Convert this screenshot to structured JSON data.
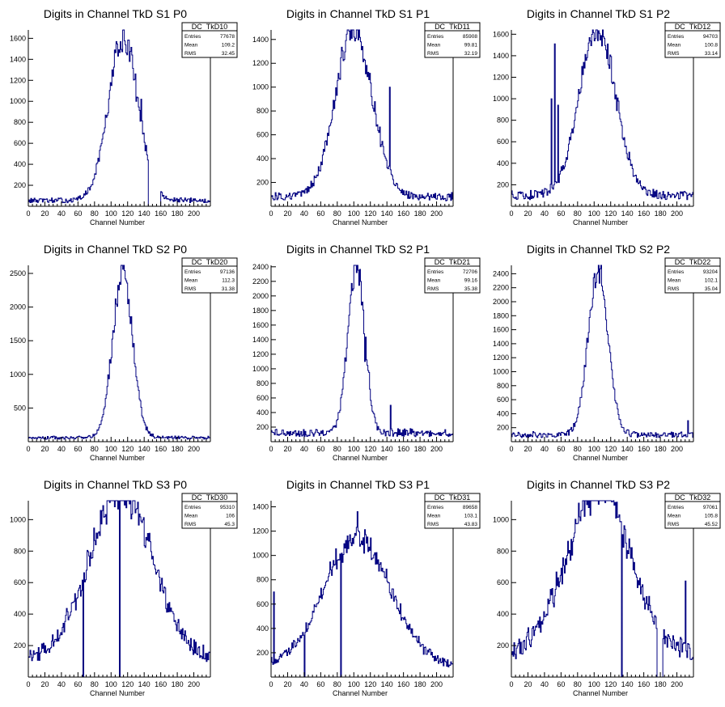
{
  "chart_data": [
    {
      "type": "histogram",
      "title": "Digits in Channel TkD S1 P0",
      "xlabel": "Channel Number",
      "ylabel": "",
      "xlim": [
        0,
        220
      ],
      "ylim": [
        0,
        1680
      ],
      "xticks": [
        0,
        20,
        40,
        60,
        80,
        100,
        120,
        140,
        160,
        180,
        200
      ],
      "yticks": [
        200,
        400,
        600,
        800,
        1000,
        1200,
        1400,
        1600
      ],
      "stats": {
        "name": "DC_TkD10",
        "entries": "77678",
        "mean": "109.2",
        "rms": "32.45"
      },
      "shape": {
        "mu": 115,
        "sigma": 18,
        "peak": 1560,
        "base": 55
      },
      "spikes": [
        [
          130,
          1000
        ],
        [
          136,
          1020
        ],
        [
          142,
          580
        ]
      ],
      "gap": [
        145,
        160
      ]
    },
    {
      "type": "histogram",
      "title": "Digits in Channel TkD S1 P1",
      "xlabel": "Channel Number",
      "ylabel": "",
      "xlim": [
        0,
        220
      ],
      "ylim": [
        0,
        1480
      ],
      "xticks": [
        0,
        20,
        40,
        60,
        80,
        100,
        120,
        140,
        160,
        180,
        200
      ],
      "yticks": [
        200,
        400,
        600,
        800,
        1000,
        1200,
        1400
      ],
      "stats": {
        "name": "DC_TkD11",
        "entries": "85908",
        "mean": "99.81",
        "rms": "32.19"
      },
      "shape": {
        "mu": 100,
        "sigma": 22,
        "peak": 1420,
        "base": 80
      },
      "spikes": [
        [
          62,
          430
        ],
        [
          66,
          550
        ],
        [
          72,
          700
        ],
        [
          100,
          1420
        ],
        [
          143,
          1000
        ]
      ],
      "gap": null
    },
    {
      "type": "histogram",
      "title": "Digits in Channel TkD S1 P2",
      "xlabel": "Channel Number",
      "ylabel": "",
      "xlim": [
        0,
        220
      ],
      "ylim": [
        0,
        1640
      ],
      "xticks": [
        0,
        20,
        40,
        60,
        80,
        100,
        120,
        140,
        160,
        180,
        200
      ],
      "yticks": [
        200,
        400,
        600,
        800,
        1000,
        1200,
        1400,
        1600
      ],
      "stats": {
        "name": "DC_TkD12",
        "entries": "94703",
        "mean": "100.8",
        "rms": "33.14"
      },
      "shape": {
        "mu": 104,
        "sigma": 22,
        "peak": 1540,
        "base": 100
      },
      "spikes": [
        [
          48,
          1000
        ],
        [
          52,
          1510
        ],
        [
          56,
          940
        ],
        [
          104,
          1540
        ]
      ],
      "gap": null
    },
    {
      "type": "histogram",
      "title": "Digits in Channel TkD S2 P0",
      "xlabel": "Channel Number",
      "ylabel": "",
      "xlim": [
        0,
        220
      ],
      "ylim": [
        0,
        2620
      ],
      "xticks": [
        0,
        20,
        40,
        60,
        80,
        100,
        120,
        140,
        160,
        180,
        200
      ],
      "yticks": [
        500,
        1000,
        1500,
        2000,
        2500
      ],
      "stats": {
        "name": "DC_TkD20",
        "entries": "97136",
        "mean": "112.3",
        "rms": "31.38"
      },
      "shape": {
        "mu": 114,
        "sigma": 12,
        "peak": 2450,
        "base": 60
      },
      "spikes": [],
      "gap": null
    },
    {
      "type": "histogram",
      "title": "Digits in Channel TkD S2 P1",
      "xlabel": "Channel Number",
      "ylabel": "",
      "xlim": [
        0,
        220
      ],
      "ylim": [
        0,
        2420
      ],
      "xticks": [
        0,
        20,
        40,
        60,
        80,
        100,
        120,
        140,
        160,
        180,
        200
      ],
      "yticks": [
        200,
        400,
        600,
        800,
        1000,
        1200,
        1400,
        1600,
        1800,
        2000,
        2200,
        2400
      ],
      "stats": {
        "name": "DC_TkD21",
        "entries": "72706",
        "mean": "99.16",
        "rms": "35.38"
      },
      "shape": {
        "mu": 103,
        "sigma": 10,
        "peak": 2300,
        "base": 120
      },
      "spikes": [
        [
          103,
          2320
        ],
        [
          108,
          2200
        ],
        [
          113,
          1100
        ],
        [
          118,
          950
        ],
        [
          144,
          500
        ]
      ],
      "gap": null
    },
    {
      "type": "histogram",
      "title": "Digits in Channel TkD S2 P2",
      "xlabel": "Channel Number",
      "ylabel": "",
      "xlim": [
        0,
        220
      ],
      "ylim": [
        0,
        2520
      ],
      "xticks": [
        0,
        20,
        40,
        60,
        80,
        100,
        120,
        140,
        160,
        180,
        200
      ],
      "yticks": [
        200,
        400,
        600,
        800,
        1000,
        1200,
        1400,
        1600,
        1800,
        2000,
        2200,
        2400
      ],
      "stats": {
        "name": "DC_TkD22",
        "entries": "93204",
        "mean": "102.1",
        "rms": "35.04"
      },
      "shape": {
        "mu": 105,
        "sigma": 12,
        "peak": 2350,
        "base": 100
      },
      "spikes": [
        [
          213,
          300
        ]
      ],
      "gap": null
    },
    {
      "type": "histogram",
      "title": "Digits in Channel TkD S3 P0",
      "xlabel": "Channel Number",
      "ylabel": "",
      "xlim": [
        0,
        220
      ],
      "ylim": [
        0,
        1120
      ],
      "xticks": [
        0,
        20,
        40,
        60,
        80,
        100,
        120,
        140,
        160,
        180,
        200
      ],
      "yticks": [
        200,
        400,
        600,
        800,
        1000
      ],
      "stats": {
        "name": "DC_TkD30",
        "entries": "95310",
        "mean": "106",
        "rms": "45.3"
      },
      "shape": {
        "mu": 112,
        "sigma": 38,
        "peak": 1060,
        "base": 120
      },
      "spikes": [
        [
          66,
          0
        ],
        [
          110,
          0
        ]
      ],
      "gap": null
    },
    {
      "type": "histogram",
      "title": "Digits in Channel TkD S3 P1",
      "xlabel": "Channel Number",
      "ylabel": "",
      "xlim": [
        0,
        220
      ],
      "ylim": [
        0,
        1450
      ],
      "xticks": [
        0,
        20,
        40,
        60,
        80,
        100,
        120,
        140,
        160,
        180,
        200
      ],
      "yticks": [
        200,
        400,
        600,
        800,
        1000,
        1200,
        1400
      ],
      "stats": {
        "name": "DC_TkD31",
        "entries": "89658",
        "mean": "103.1",
        "rms": "43.83"
      },
      "shape": {
        "mu": 104,
        "sigma": 40,
        "peak": 1050,
        "base": 90
      },
      "spikes": [
        [
          3,
          700
        ],
        [
          40,
          0
        ],
        [
          84,
          0
        ],
        [
          104,
          1360
        ]
      ],
      "gap": null
    },
    {
      "type": "histogram",
      "title": "Digits in Channel TkD S3 P2",
      "xlabel": "Channel Number",
      "ylabel": "",
      "xlim": [
        0,
        220
      ],
      "ylim": [
        0,
        1120
      ],
      "xticks": [
        0,
        20,
        40,
        60,
        80,
        100,
        120,
        140,
        160,
        180,
        200
      ],
      "yticks": [
        200,
        400,
        600,
        800,
        1000
      ],
      "stats": {
        "name": "DC_TkD32",
        "entries": "97061",
        "mean": "105.8",
        "rms": "45.52"
      },
      "shape": {
        "mu": 106,
        "sigma": 38,
        "peak": 1050,
        "base": 150
      },
      "spikes": [
        [
          133,
          0
        ],
        [
          210,
          610
        ]
      ],
      "gap": [
        176,
        183
      ]
    }
  ],
  "stat_labels": {
    "entries": "Entries",
    "mean": "Mean",
    "rms": "RMS"
  },
  "colors": {
    "line": "#000080",
    "axis": "#000000",
    "background": "#ffffff"
  }
}
